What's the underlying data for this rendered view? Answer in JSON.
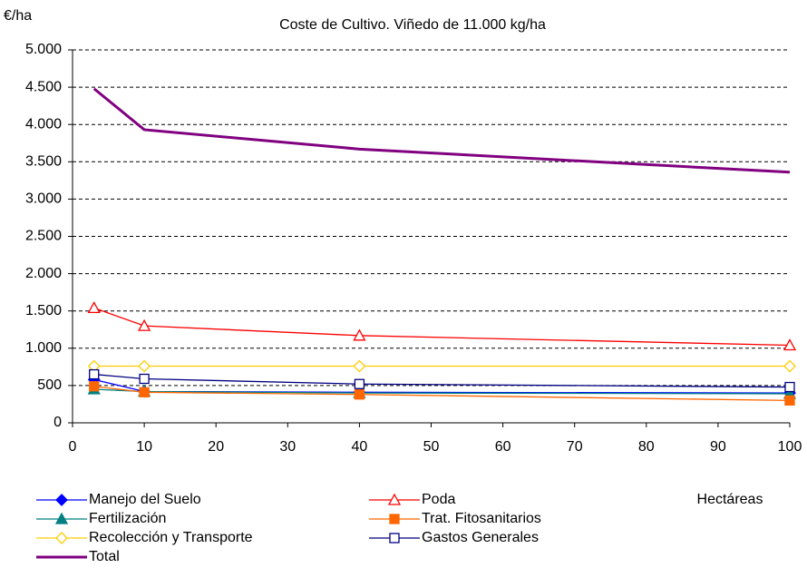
{
  "chart_data": {
    "type": "line",
    "title": "Coste de Cultivo. Viñedo de 11.000 kg/ha",
    "y_label": "€/ha",
    "x_label": "Hectáreas",
    "x": [
      3,
      10,
      40,
      100
    ],
    "series": [
      {
        "name": "Manejo del Suelo",
        "color": "#0000ff",
        "marker": "diamond",
        "marker_filled": true,
        "values": [
          580,
          420,
          410,
          400
        ]
      },
      {
        "name": "Poda",
        "color": "#ff0000",
        "marker": "triangle",
        "marker_filled": false,
        "values": [
          1540,
          1300,
          1170,
          1040
        ]
      },
      {
        "name": "Fertilización",
        "color": "#008080",
        "marker": "triangle",
        "marker_filled": true,
        "values": [
          450,
          420,
          400,
          390
        ]
      },
      {
        "name": "Trat. Fitosanitarios",
        "color": "#ff6600",
        "marker": "square",
        "marker_filled": true,
        "values": [
          490,
          410,
          380,
          300
        ]
      },
      {
        "name": "Recolección y Transporte",
        "color": "#ffcc00",
        "marker": "diamond",
        "marker_filled": false,
        "values": [
          760,
          760,
          760,
          760
        ]
      },
      {
        "name": "Gastos Generales",
        "color": "#000080",
        "marker": "square",
        "marker_filled": false,
        "values": [
          650,
          590,
          520,
          480
        ]
      },
      {
        "name": "Total",
        "color": "#800080",
        "marker": "none",
        "marker_filled": false,
        "line_width": 3,
        "values": [
          4480,
          3930,
          3670,
          3360
        ]
      }
    ],
    "xlim": [
      0,
      100
    ],
    "xticks": [
      0,
      10,
      20,
      30,
      40,
      50,
      60,
      70,
      80,
      90,
      100
    ],
    "ylim": [
      0,
      5000
    ],
    "yticks": [
      0,
      {
        "value": 500,
        "label": "500"
      },
      {
        "value": 1000,
        "label": "1.000"
      },
      {
        "value": 1500,
        "label": "1.500"
      },
      {
        "value": 2000,
        "label": "2.000"
      },
      {
        "value": 2500,
        "label": "2.500"
      },
      {
        "value": 3000,
        "label": "3.000"
      },
      {
        "value": 3500,
        "label": "3.500"
      },
      {
        "value": 4000,
        "label": "4.000"
      },
      {
        "value": 4500,
        "label": "4.500"
      },
      {
        "value": 5000,
        "label": "5.000"
      }
    ],
    "grid": true
  }
}
